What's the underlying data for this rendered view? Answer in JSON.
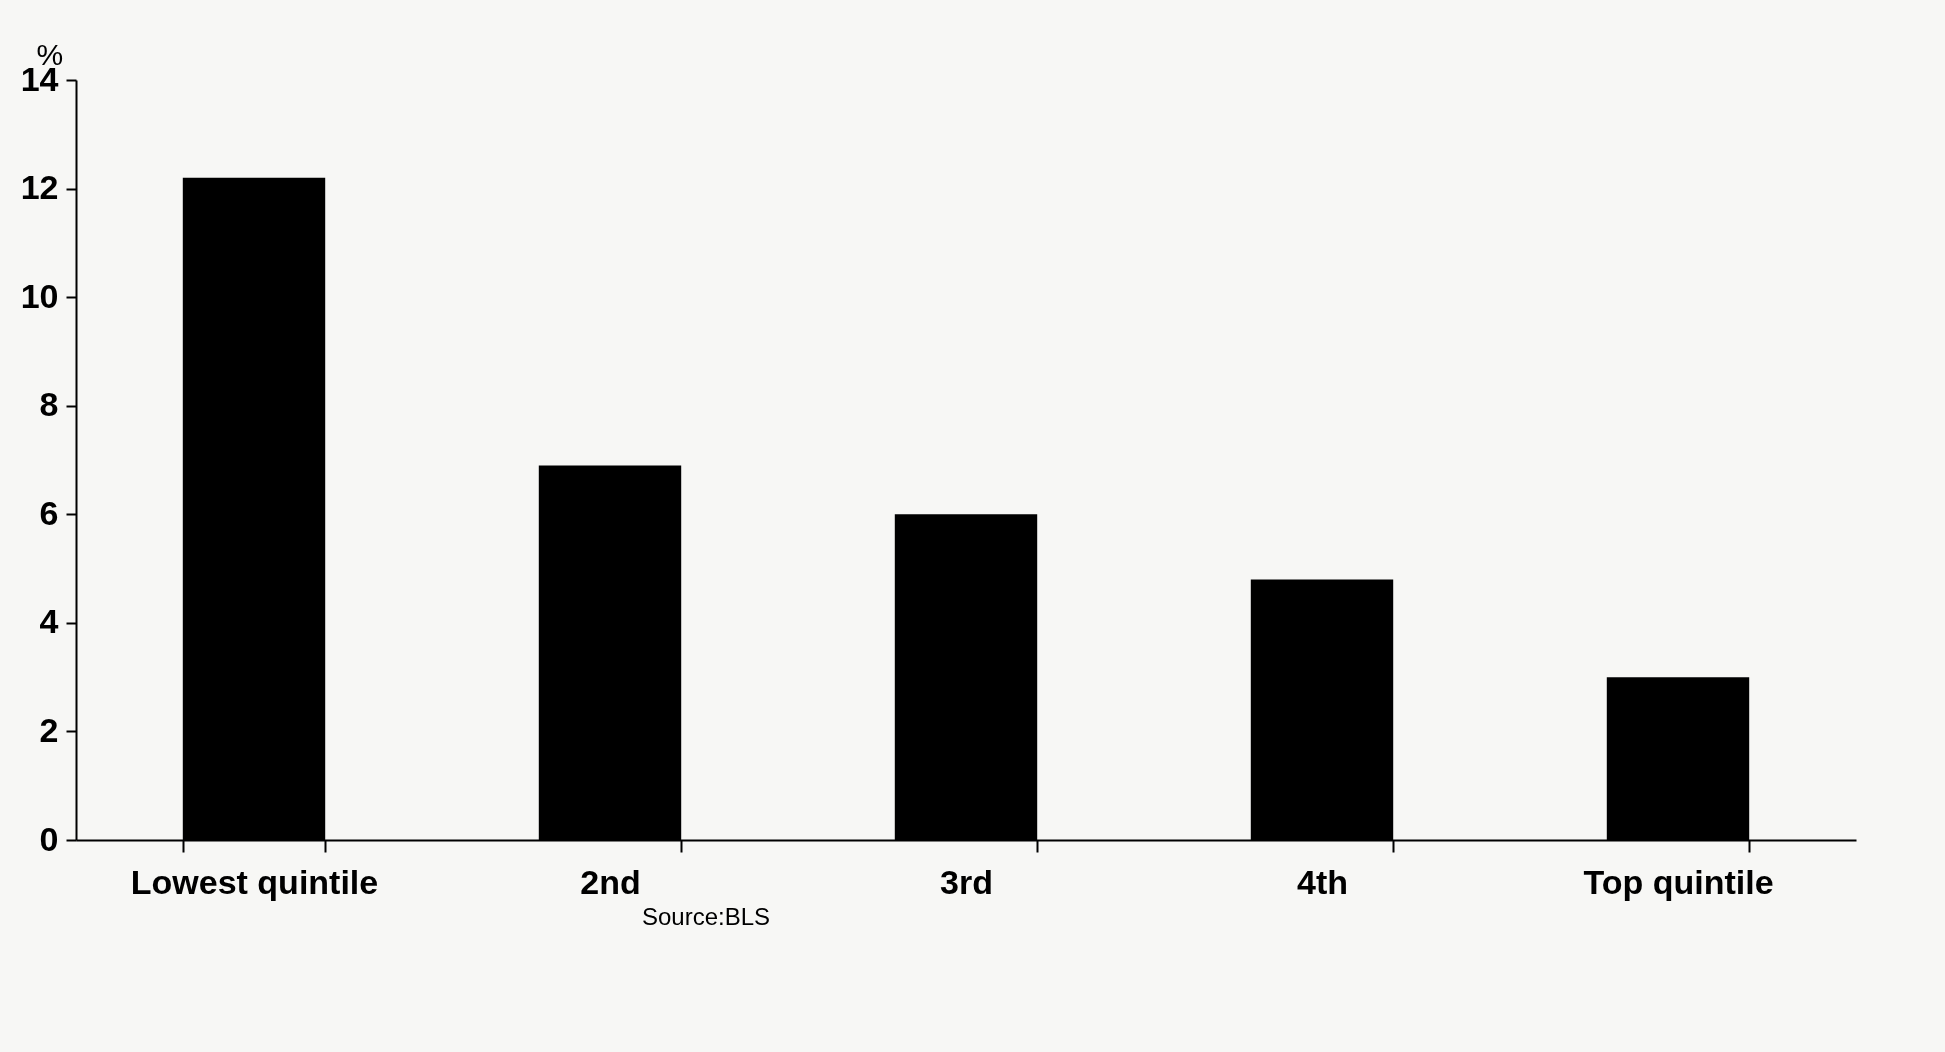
{
  "chart_data": {
    "type": "bar",
    "ylabel": "%",
    "categories": [
      "Lowest quintile",
      "2nd",
      "3rd",
      "4th",
      "Top quintile"
    ],
    "values": [
      12.2,
      6.9,
      6.0,
      4.8,
      3.0
    ],
    "color": "#000000",
    "ylim": [
      0,
      14
    ],
    "yticks": [
      0,
      2,
      4,
      6,
      8,
      10,
      12,
      14
    ],
    "grid": false,
    "annotations": [
      "Source:BLS"
    ]
  }
}
